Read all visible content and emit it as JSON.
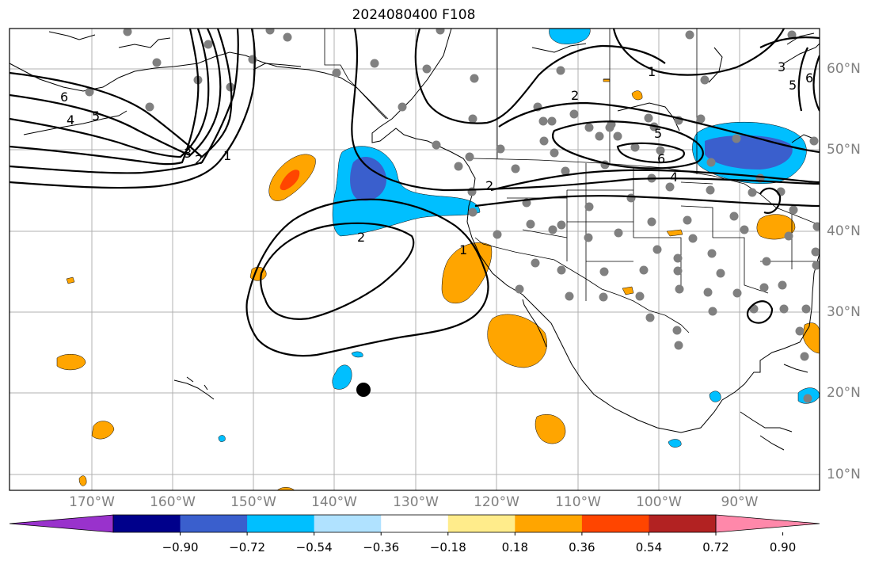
{
  "title": "2024080400 F108",
  "lon_labels": [
    "170°W",
    "160°W",
    "150°W",
    "140°W",
    "130°W",
    "120°W",
    "110°W",
    "100°W",
    "90°W"
  ],
  "lat_labels": [
    "60°N",
    "50°N",
    "40°N",
    "30°N",
    "20°N",
    "10°N"
  ],
  "contour_labels": [
    "1",
    "2",
    "3",
    "5",
    "6",
    "4"
  ],
  "colorbar": {
    "ticks": [
      "−0.90",
      "−0.72",
      "−0.54",
      "−0.36",
      "−0.18",
      "0.18",
      "0.36",
      "0.54",
      "0.72",
      "0.90"
    ],
    "colors": [
      "#9932cc",
      "#00008b",
      "#3a5fcd",
      "#00bfff",
      "#b0e2ff",
      "#ffffff",
      "#ffec8b",
      "#ffa500",
      "#ff4500",
      "#b22222",
      "#ff88aa"
    ]
  },
  "marker_colors": {
    "stations": "#808080",
    "point": "#000000"
  }
}
